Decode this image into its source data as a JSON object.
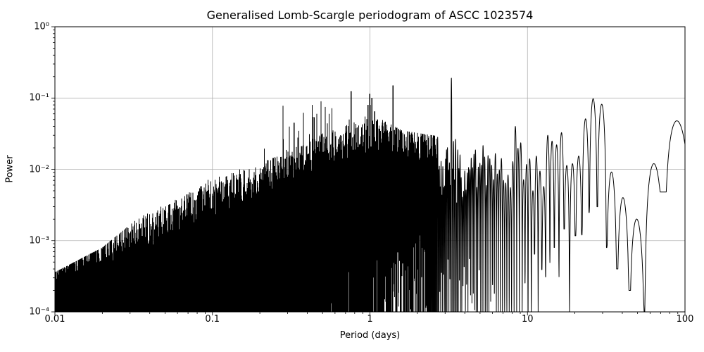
{
  "chart_data": {
    "type": "line",
    "title": "Generalised Lomb-Scargle periodogram of ASCC 1023574",
    "xlabel": "Period (days)",
    "ylabel": "Power",
    "xscale": "log",
    "yscale": "log",
    "xlim": [
      0.01,
      100
    ],
    "ylim": [
      0.0001,
      1
    ],
    "grid": true,
    "x_ticks": [
      {
        "value": 0.01,
        "label": "0.01"
      },
      {
        "value": 0.1,
        "label": "0.1"
      },
      {
        "value": 1,
        "label": "1"
      },
      {
        "value": 10,
        "label": "10"
      },
      {
        "value": 100,
        "label": "100"
      }
    ],
    "y_ticks": [
      {
        "value": 1,
        "label": "10⁰"
      },
      {
        "value": 0.1,
        "label": "10⁻¹"
      },
      {
        "value": 0.01,
        "label": "10⁻²"
      },
      {
        "value": 0.001,
        "label": "10⁻³"
      },
      {
        "value": 0.0001,
        "label": "10⁻⁴"
      }
    ],
    "colors": {
      "line": "#000000",
      "grid": "#b0b0b0",
      "background": "#ffffff",
      "text": "#000000"
    },
    "model": {
      "description": "Dense GLS periodogram: noise floor rises from ~2e-4 at P=0.01 d to ~1e-2 near P=1 d; strongest peak ~0.19 at P=3.3 d; smooth window lobes beyond ~13 d with broad maxima near 27 d (~0.1) and 86 d (~0.05).",
      "window_days": 222,
      "sin_power": 1.7,
      "dense_to_resolved_period": 2.45,
      "spike_prob": 0.1,
      "lobe_spike_prob": 0.05,
      "spike_envelope": [
        [
          0.01,
          0.00036
        ],
        [
          0.02,
          0.0008
        ],
        [
          0.04,
          0.0028
        ],
        [
          0.07,
          0.005
        ],
        [
          0.1,
          0.0087
        ],
        [
          0.15,
          0.012
        ],
        [
          0.2,
          0.017
        ],
        [
          0.3,
          0.04
        ],
        [
          0.45,
          0.09
        ],
        [
          0.6,
          0.06
        ],
        [
          0.7,
          0.04
        ],
        [
          0.8,
          0.08
        ],
        [
          1.0,
          0.12
        ],
        [
          1.2,
          0.05
        ],
        [
          1.6,
          0.035
        ],
        [
          2.5,
          0.03
        ],
        [
          4.0,
          0.025
        ],
        [
          6.0,
          0.03
        ],
        [
          9.0,
          0.04
        ],
        [
          13.0,
          0.035
        ]
      ],
      "typical_level": [
        [
          0.01,
          0.0002
        ],
        [
          0.02,
          0.00035
        ],
        [
          0.05,
          0.0009
        ],
        [
          0.1,
          0.002
        ],
        [
          0.2,
          0.0035
        ],
        [
          0.3,
          0.005
        ],
        [
          0.5,
          0.009
        ],
        [
          0.8,
          0.013
        ],
        [
          1.0,
          0.016
        ],
        [
          1.5,
          0.013
        ],
        [
          2.5,
          0.011
        ],
        [
          5.0,
          0.01
        ],
        [
          9.0,
          0.012
        ],
        [
          13.0,
          0.012
        ]
      ],
      "forced_peaks": [
        [
          0.28,
          0.078
        ],
        [
          0.33,
          0.045
        ],
        [
          0.43,
          0.08
        ],
        [
          0.46,
          0.06
        ],
        [
          0.49,
          0.09
        ],
        [
          0.52,
          0.075
        ],
        [
          0.55,
          0.06
        ],
        [
          0.575,
          0.072
        ],
        [
          0.74,
          0.05
        ],
        [
          0.76,
          0.125
        ],
        [
          0.93,
          0.055
        ],
        [
          0.97,
          0.08
        ],
        [
          1.0,
          0.115
        ],
        [
          1.03,
          0.1
        ],
        [
          1.07,
          0.065
        ],
        [
          1.12,
          0.05
        ],
        [
          1.4,
          0.15
        ],
        [
          3.3,
          0.19
        ],
        [
          8.4,
          0.04
        ]
      ],
      "lobe_amps_beyond_13d": [
        [
          13.5,
          0.03
        ],
        [
          14.3,
          0.025
        ],
        [
          15.3,
          0.022
        ],
        [
          16.4,
          0.034
        ],
        [
          17.8,
          0.011
        ],
        [
          19.3,
          0.012
        ],
        [
          21.1,
          0.015
        ],
        [
          23.4,
          0.052
        ],
        [
          26.1,
          0.098
        ],
        [
          29.6,
          0.082
        ],
        [
          34.2,
          0.009
        ],
        [
          40.4,
          0.004
        ],
        [
          49.3,
          0.002
        ],
        [
          63.4,
          0.012
        ],
        [
          88.8,
          0.048
        ]
      ],
      "null_floors_beyond_13d": [
        [
          13.0,
          0.0003
        ],
        [
          14.8,
          0.0008
        ],
        [
          15.9,
          0.0003
        ],
        [
          17.1,
          0.0015
        ],
        [
          18.5,
          0.0001
        ],
        [
          20.2,
          0.0012
        ],
        [
          22.2,
          0.0012
        ],
        [
          24.7,
          0.0025
        ],
        [
          27.8,
          0.003
        ],
        [
          31.7,
          0.0008
        ],
        [
          37.0,
          0.0004
        ],
        [
          44.4,
          0.0002
        ],
        [
          55.5,
          0.0001
        ],
        [
          74.0,
          0.0048
        ],
        [
          111.0,
          0.003
        ]
      ],
      "bottom_stripe": {
        "start_period": 0.35,
        "full_period": 2.2,
        "max_prob": 0.6,
        "depth_exp_min": 0.8,
        "depth_exp_span": 1.6
      }
    }
  }
}
